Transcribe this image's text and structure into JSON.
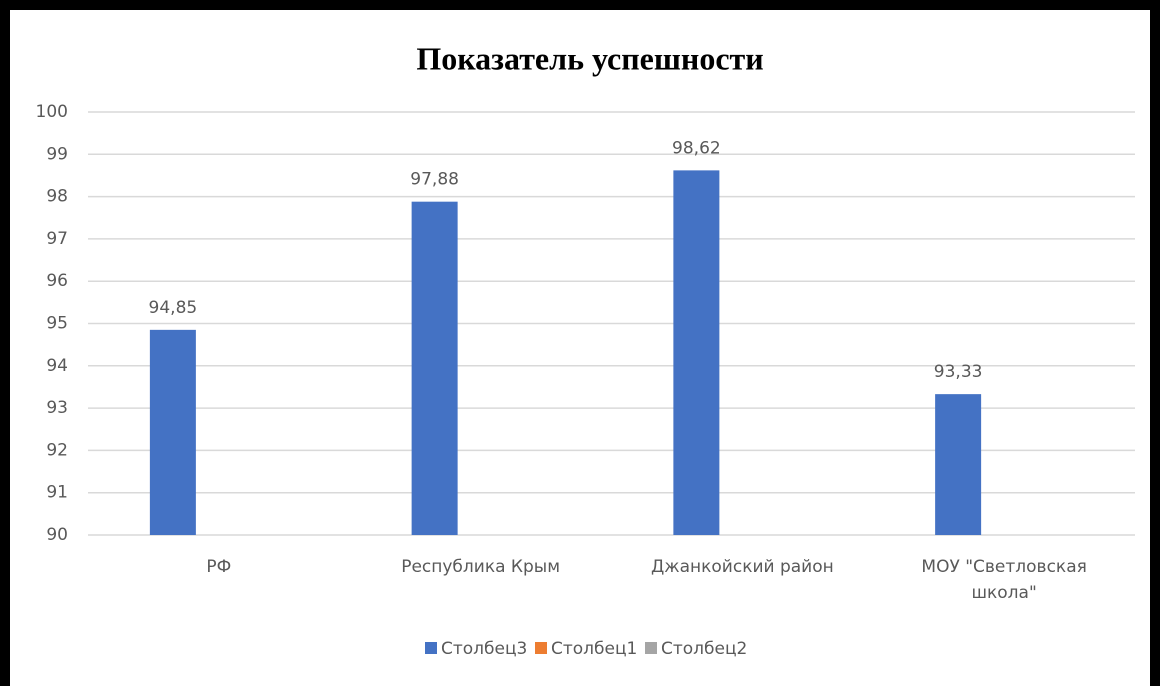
{
  "chart_data": {
    "type": "bar",
    "title": "Показатель успешности",
    "categories": [
      "РФ",
      "Республика Крым",
      "Джанкойский район",
      "МОУ \"Светловская школа\""
    ],
    "series": [
      {
        "name": "Столбец3",
        "color": "#4472c4",
        "values": [
          94.85,
          97.88,
          98.62,
          93.33
        ],
        "value_labels": [
          "94,85",
          "97,88",
          "98,62",
          "93,33"
        ]
      },
      {
        "name": "Столбец1",
        "color": "#ed7d31",
        "values": [
          null,
          null,
          null,
          null
        ]
      },
      {
        "name": "Столбец2",
        "color": "#a5a5a5",
        "values": [
          null,
          null,
          null,
          null
        ]
      }
    ],
    "ylim": [
      90,
      100
    ],
    "yticks": [
      90,
      91,
      92,
      93,
      94,
      95,
      96,
      97,
      98,
      99,
      100
    ],
    "grid": true,
    "legend": "bottom"
  }
}
